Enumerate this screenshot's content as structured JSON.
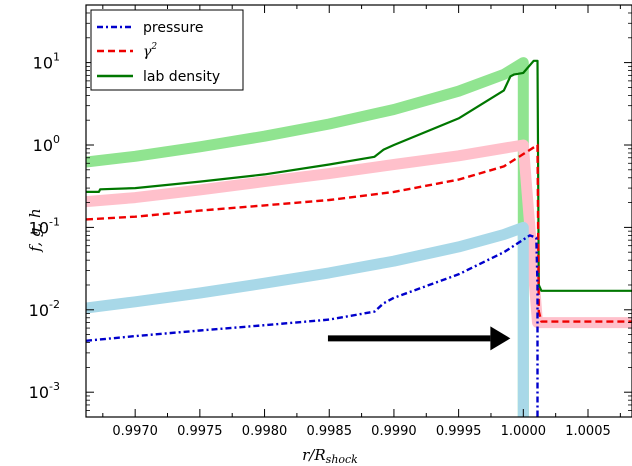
{
  "chart_data": {
    "type": "line",
    "title": "",
    "xlabel": "r/R",
    "xlabel_sub": "shock",
    "ylabel": "f, g, h",
    "yscale": "log",
    "xlim": [
      0.99662,
      1.00084
    ],
    "ylim": [
      0.0005,
      50
    ],
    "xticks": [
      0.997,
      0.9975,
      0.998,
      0.9985,
      0.999,
      0.9995,
      1.0,
      1.0005
    ],
    "xtick_labels": [
      "0.9970",
      "0.9975",
      "0.9980",
      "0.9985",
      "0.9990",
      "0.9995",
      "1.0000",
      "1.0005"
    ],
    "yticks": [
      0.001,
      0.01,
      0.1,
      1,
      10
    ],
    "ytick_labels": [
      {
        "base": "10",
        "exp": "-3"
      },
      {
        "base": "10",
        "exp": "-2"
      },
      {
        "base": "10",
        "exp": "-1"
      },
      {
        "base": "10",
        "exp": "0"
      },
      {
        "base": "10",
        "exp": "1"
      }
    ],
    "legend_position": "upper-left",
    "legend": [
      {
        "label": "pressure",
        "color": "#0000cc",
        "style": "dashdot"
      },
      {
        "label": "γ",
        "sup": "2",
        "color": "#ee0000",
        "style": "dashed"
      },
      {
        "label": "lab density",
        "color": "#007700",
        "style": "solid"
      }
    ],
    "series": [
      {
        "name": "lab density (analytic)",
        "color": "#90e490",
        "style": "thick",
        "x": [
          0.99662,
          0.997,
          0.9975,
          0.998,
          0.9985,
          0.999,
          0.9995,
          0.99985,
          1.0,
          1.0,
          1.0
        ],
        "y": [
          0.62,
          0.73,
          0.95,
          1.28,
          1.8,
          2.7,
          4.5,
          7.2,
          10.0,
          10.0,
          0.0004
        ]
      },
      {
        "name": "gamma^2 (analytic)",
        "color": "#ffc0cb",
        "style": "thick",
        "x": [
          0.99662,
          0.997,
          0.9975,
          0.998,
          0.9985,
          0.999,
          0.9995,
          1.0,
          1.00011,
          1.00084
        ],
        "y": [
          0.205,
          0.23,
          0.285,
          0.36,
          0.45,
          0.58,
          0.74,
          1.0,
          0.007,
          0.007
        ]
      },
      {
        "name": "pressure (analytic)",
        "color": "#a8d8e8",
        "style": "thick",
        "x": [
          0.99662,
          0.997,
          0.9975,
          0.998,
          0.9985,
          0.999,
          0.9995,
          0.99985,
          1.0,
          1.0
        ],
        "y": [
          0.0105,
          0.0125,
          0.016,
          0.021,
          0.028,
          0.039,
          0.058,
          0.082,
          0.1,
          0.0004
        ]
      },
      {
        "name": "lab density",
        "color": "#007700",
        "style": "solid",
        "x": [
          0.99662,
          0.99672,
          0.99673,
          0.997,
          0.9975,
          0.998,
          0.9985,
          0.99885,
          0.99892,
          0.999,
          0.9995,
          0.99985,
          0.9999,
          0.99993,
          1.0,
          1.00008,
          1.00011,
          1.00012,
          1.00014,
          1.00084
        ],
        "y": [
          0.27,
          0.27,
          0.29,
          0.3,
          0.36,
          0.44,
          0.58,
          0.72,
          0.88,
          1.0,
          2.1,
          4.6,
          6.8,
          7.2,
          7.5,
          10.5,
          10.5,
          0.02,
          0.017,
          0.017
        ]
      },
      {
        "name": "gamma^2",
        "color": "#ee0000",
        "style": "dashed",
        "x": [
          0.99662,
          0.997,
          0.9975,
          0.998,
          0.9985,
          0.999,
          0.9995,
          0.99985,
          1.00011,
          1.00012,
          1.00014,
          1.00084
        ],
        "y": [
          0.125,
          0.135,
          0.16,
          0.185,
          0.215,
          0.27,
          0.38,
          0.55,
          1.0,
          0.0095,
          0.0072,
          0.0072
        ]
      },
      {
        "name": "pressure",
        "color": "#0000cc",
        "style": "dashdot",
        "x": [
          0.99662,
          0.997,
          0.9975,
          0.998,
          0.9985,
          0.99885,
          0.99892,
          0.999,
          0.9995,
          0.99985,
          1.00005,
          1.0001,
          1.00011,
          1.00011
        ],
        "y": [
          0.0042,
          0.0048,
          0.0056,
          0.0065,
          0.0076,
          0.0095,
          0.012,
          0.014,
          0.027,
          0.05,
          0.08,
          0.075,
          0.02,
          0.0004
        ]
      }
    ],
    "annotations": [
      {
        "type": "arrow",
        "x_from": 0.99849,
        "x_to": 0.9999,
        "y": 0.0045,
        "color": "#000000"
      }
    ]
  }
}
